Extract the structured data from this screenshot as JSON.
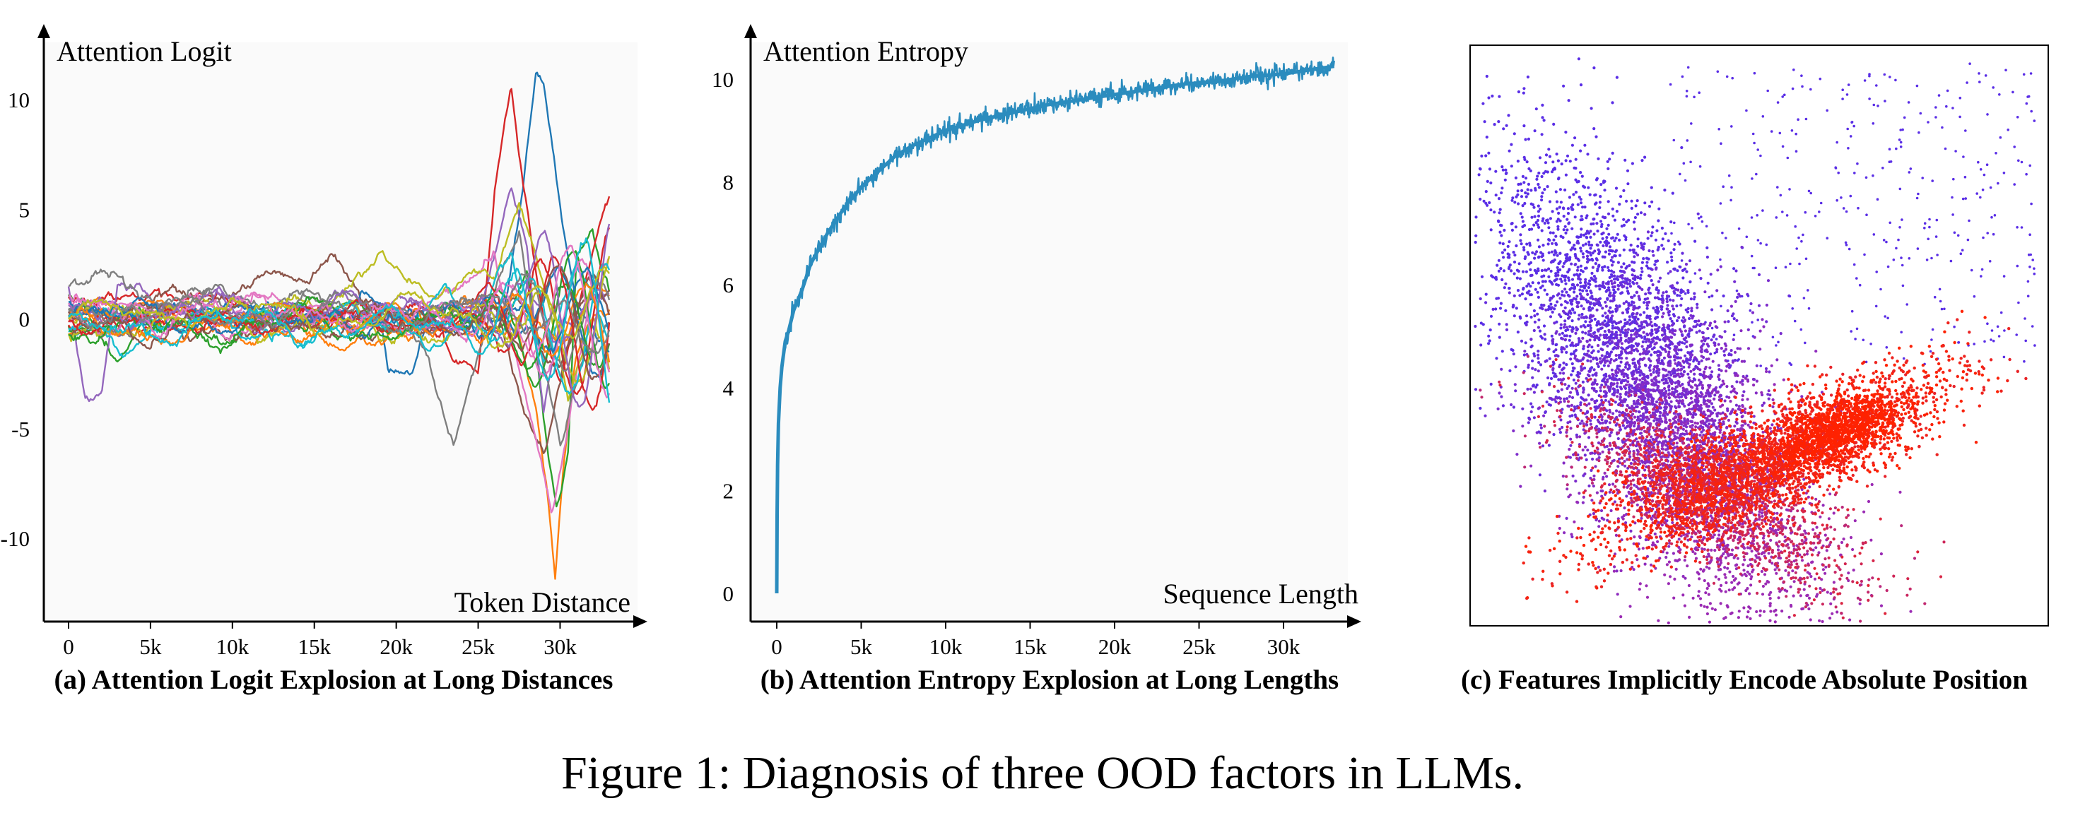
{
  "figure": {
    "caption": "Figure 1: Diagnosis of three OOD factors in LLMs."
  },
  "chart_data": [
    {
      "type": "line",
      "caption": "(a) Attention Logit Explosion at Long Distances",
      "ylabel": "Attention Logit",
      "xlabel": "Token Distance",
      "xlim": [
        0,
        33000
      ],
      "ylim": [
        -13,
        12
      ],
      "x_ticks": [
        0,
        5000,
        10000,
        15000,
        20000,
        25000,
        30000
      ],
      "x_tick_labels": [
        "0",
        "5k",
        "10k",
        "15k",
        "20k",
        "25k",
        "30k"
      ],
      "y_ticks": [
        10,
        5,
        0,
        -5,
        -10
      ],
      "y_tick_labels": [
        "10",
        "5",
        "0",
        "-5",
        "-10"
      ],
      "series_count": 30,
      "colors": [
        "#1f77b4",
        "#ff7f0e",
        "#2ca02c",
        "#d62728",
        "#9467bd",
        "#8c564b",
        "#e377c2",
        "#7f7f7f",
        "#bcbd22",
        "#17becf"
      ],
      "highlights": [
        {
          "color": "#7f7f7f",
          "points": [
            [
              0,
              0.5
            ],
            [
              19000,
              0
            ],
            [
              19500,
              -2.5
            ],
            [
              21000,
              -2.3
            ],
            [
              22000,
              0.5
            ],
            [
              25000,
              0
            ],
            [
              26500,
              0.8
            ],
            [
              27500,
              5
            ],
            [
              28000,
              8
            ],
            [
              28500,
              11.2
            ],
            [
              29000,
              10.5
            ],
            [
              30000,
              5
            ],
            [
              31000,
              1
            ],
            [
              32000,
              0
            ],
            [
              33000,
              -1
            ]
          ]
        },
        {
          "color": "#17becf",
          "points": [
            [
              0,
              0.5
            ],
            [
              17000,
              -0.8
            ],
            [
              24000,
              0
            ],
            [
              26000,
              0.5
            ],
            [
              27500,
              -0.5
            ],
            [
              28500,
              -4
            ],
            [
              29200,
              -8
            ],
            [
              29700,
              -12.3
            ],
            [
              30200,
              -7
            ],
            [
              31000,
              -2
            ],
            [
              32000,
              0
            ],
            [
              33000,
              1
            ]
          ]
        },
        {
          "color": "#ff7f0e",
          "points": [
            [
              0,
              1
            ],
            [
              3000,
              -2
            ],
            [
              5000,
              0.2
            ],
            [
              26000,
              0
            ],
            [
              27000,
              0.5
            ],
            [
              28000,
              2
            ],
            [
              29000,
              -5
            ],
            [
              29800,
              -9
            ],
            [
              30500,
              -6
            ],
            [
              31000,
              3
            ],
            [
              32000,
              4
            ],
            [
              33000,
              1
            ]
          ]
        },
        {
          "color": "#d62728",
          "points": [
            [
              0,
              1.2
            ],
            [
              15000,
              0.2
            ],
            [
              22000,
              0.5
            ],
            [
              24000,
              -2
            ],
            [
              25000,
              -3
            ],
            [
              26000,
              5
            ],
            [
              27000,
              10.2
            ],
            [
              28000,
              5
            ],
            [
              29000,
              0
            ],
            [
              30000,
              -3
            ],
            [
              31000,
              0
            ],
            [
              33000,
              5.5
            ]
          ]
        },
        {
          "color": "#2ca02c",
          "points": [
            [
              0,
              1.5
            ],
            [
              1000,
              -3.2
            ],
            [
              2000,
              -3
            ],
            [
              3000,
              1.5
            ],
            [
              10000,
              0
            ],
            [
              20000,
              0.3
            ],
            [
              25000,
              0
            ],
            [
              27000,
              6
            ],
            [
              28000,
              3
            ],
            [
              29000,
              -4
            ],
            [
              30000,
              0
            ],
            [
              33000,
              1
            ]
          ]
        },
        {
          "color": "#bcbd22",
          "points": [
            [
              0,
              0
            ],
            [
              14000,
              2
            ],
            [
              16000,
              3.5
            ],
            [
              18000,
              1
            ],
            [
              21000,
              0
            ],
            [
              26000,
              1
            ],
            [
              27500,
              -3
            ],
            [
              29000,
              -7
            ],
            [
              30000,
              -3
            ],
            [
              31000,
              1
            ],
            [
              33000,
              2
            ]
          ]
        },
        {
          "color": "#9467bd",
          "points": [
            [
              0,
              0.5
            ],
            [
              8000,
              0.3
            ],
            [
              18000,
              0
            ],
            [
              24000,
              1
            ],
            [
              26000,
              3
            ],
            [
              28000,
              -4
            ],
            [
              29500,
              -9
            ],
            [
              30500,
              -5
            ],
            [
              32000,
              2
            ],
            [
              33000,
              3
            ]
          ]
        },
        {
          "color": "#1f77b4",
          "points": [
            [
              0,
              1.8
            ],
            [
              20000,
              0
            ],
            [
              22000,
              -2
            ],
            [
              23500,
              -5.5
            ],
            [
              24500,
              -3
            ],
            [
              26000,
              1
            ],
            [
              27500,
              4
            ],
            [
              28500,
              0
            ],
            [
              30000,
              -6
            ],
            [
              31500,
              -2
            ],
            [
              33000,
              0
            ]
          ]
        },
        {
          "color": "#e377c2",
          "points": [
            [
              0,
              0.3
            ],
            [
              15000,
              0.5
            ],
            [
              19000,
              2.5
            ],
            [
              22000,
              1
            ],
            [
              26000,
              2
            ],
            [
              27500,
              6
            ],
            [
              29000,
              2
            ],
            [
              30500,
              -4
            ],
            [
              32000,
              0
            ],
            [
              33000,
              -2
            ]
          ]
        },
        {
          "color": "#8c564b",
          "points": [
            [
              0,
              -0.3
            ],
            [
              10000,
              0.2
            ],
            [
              21000,
              0
            ],
            [
              23000,
              2
            ],
            [
              25000,
              -1
            ],
            [
              27000,
              3
            ],
            [
              29000,
              -2
            ],
            [
              31000,
              2
            ],
            [
              33000,
              -1
            ]
          ]
        }
      ]
    },
    {
      "type": "line",
      "caption": "(b) Attention Entropy Explosion at Long Lengths",
      "ylabel": "Attention Entropy",
      "xlabel": "Sequence Length",
      "xlim": [
        -2000,
        35000
      ],
      "ylim": [
        -0.5,
        11.2
      ],
      "x_ticks": [
        0,
        5000,
        10000,
        15000,
        20000,
        25000,
        30000
      ],
      "x_tick_labels": [
        "0",
        "5k",
        "10k",
        "15k",
        "20k",
        "25k",
        "30k"
      ],
      "y_ticks": [
        0,
        2,
        4,
        6,
        8,
        10
      ],
      "y_tick_labels": [
        "0",
        "2",
        "4",
        "6",
        "8",
        "10"
      ],
      "series": [
        {
          "color": "#2b8cbe",
          "x": [
            0,
            20,
            50,
            100,
            200,
            300,
            500,
            700,
            1000,
            1500,
            2000,
            3000,
            4000,
            5000,
            6000,
            7000,
            8000,
            10000,
            12000,
            14000,
            16000,
            18000,
            20000,
            22000,
            24000,
            26000,
            28000,
            30000,
            32000,
            33000
          ],
          "y": [
            0.0,
            1.5,
            2.5,
            3.3,
            4.0,
            4.4,
            4.9,
            5.1,
            5.5,
            5.9,
            6.4,
            7.0,
            7.5,
            7.9,
            8.2,
            8.5,
            8.7,
            9.0,
            9.2,
            9.35,
            9.5,
            9.6,
            9.7,
            9.8,
            9.9,
            9.95,
            10.05,
            10.1,
            10.2,
            10.25
          ]
        }
      ]
    },
    {
      "type": "scatter",
      "caption": "(c) Features Implicitly Encode Absolute Position",
      "xlabel": "",
      "ylabel": "",
      "axes": "none",
      "colors": {
        "near": "#5a2ee6",
        "mid": "#9b2bb4",
        "far": "#ff2200"
      }
    }
  ]
}
